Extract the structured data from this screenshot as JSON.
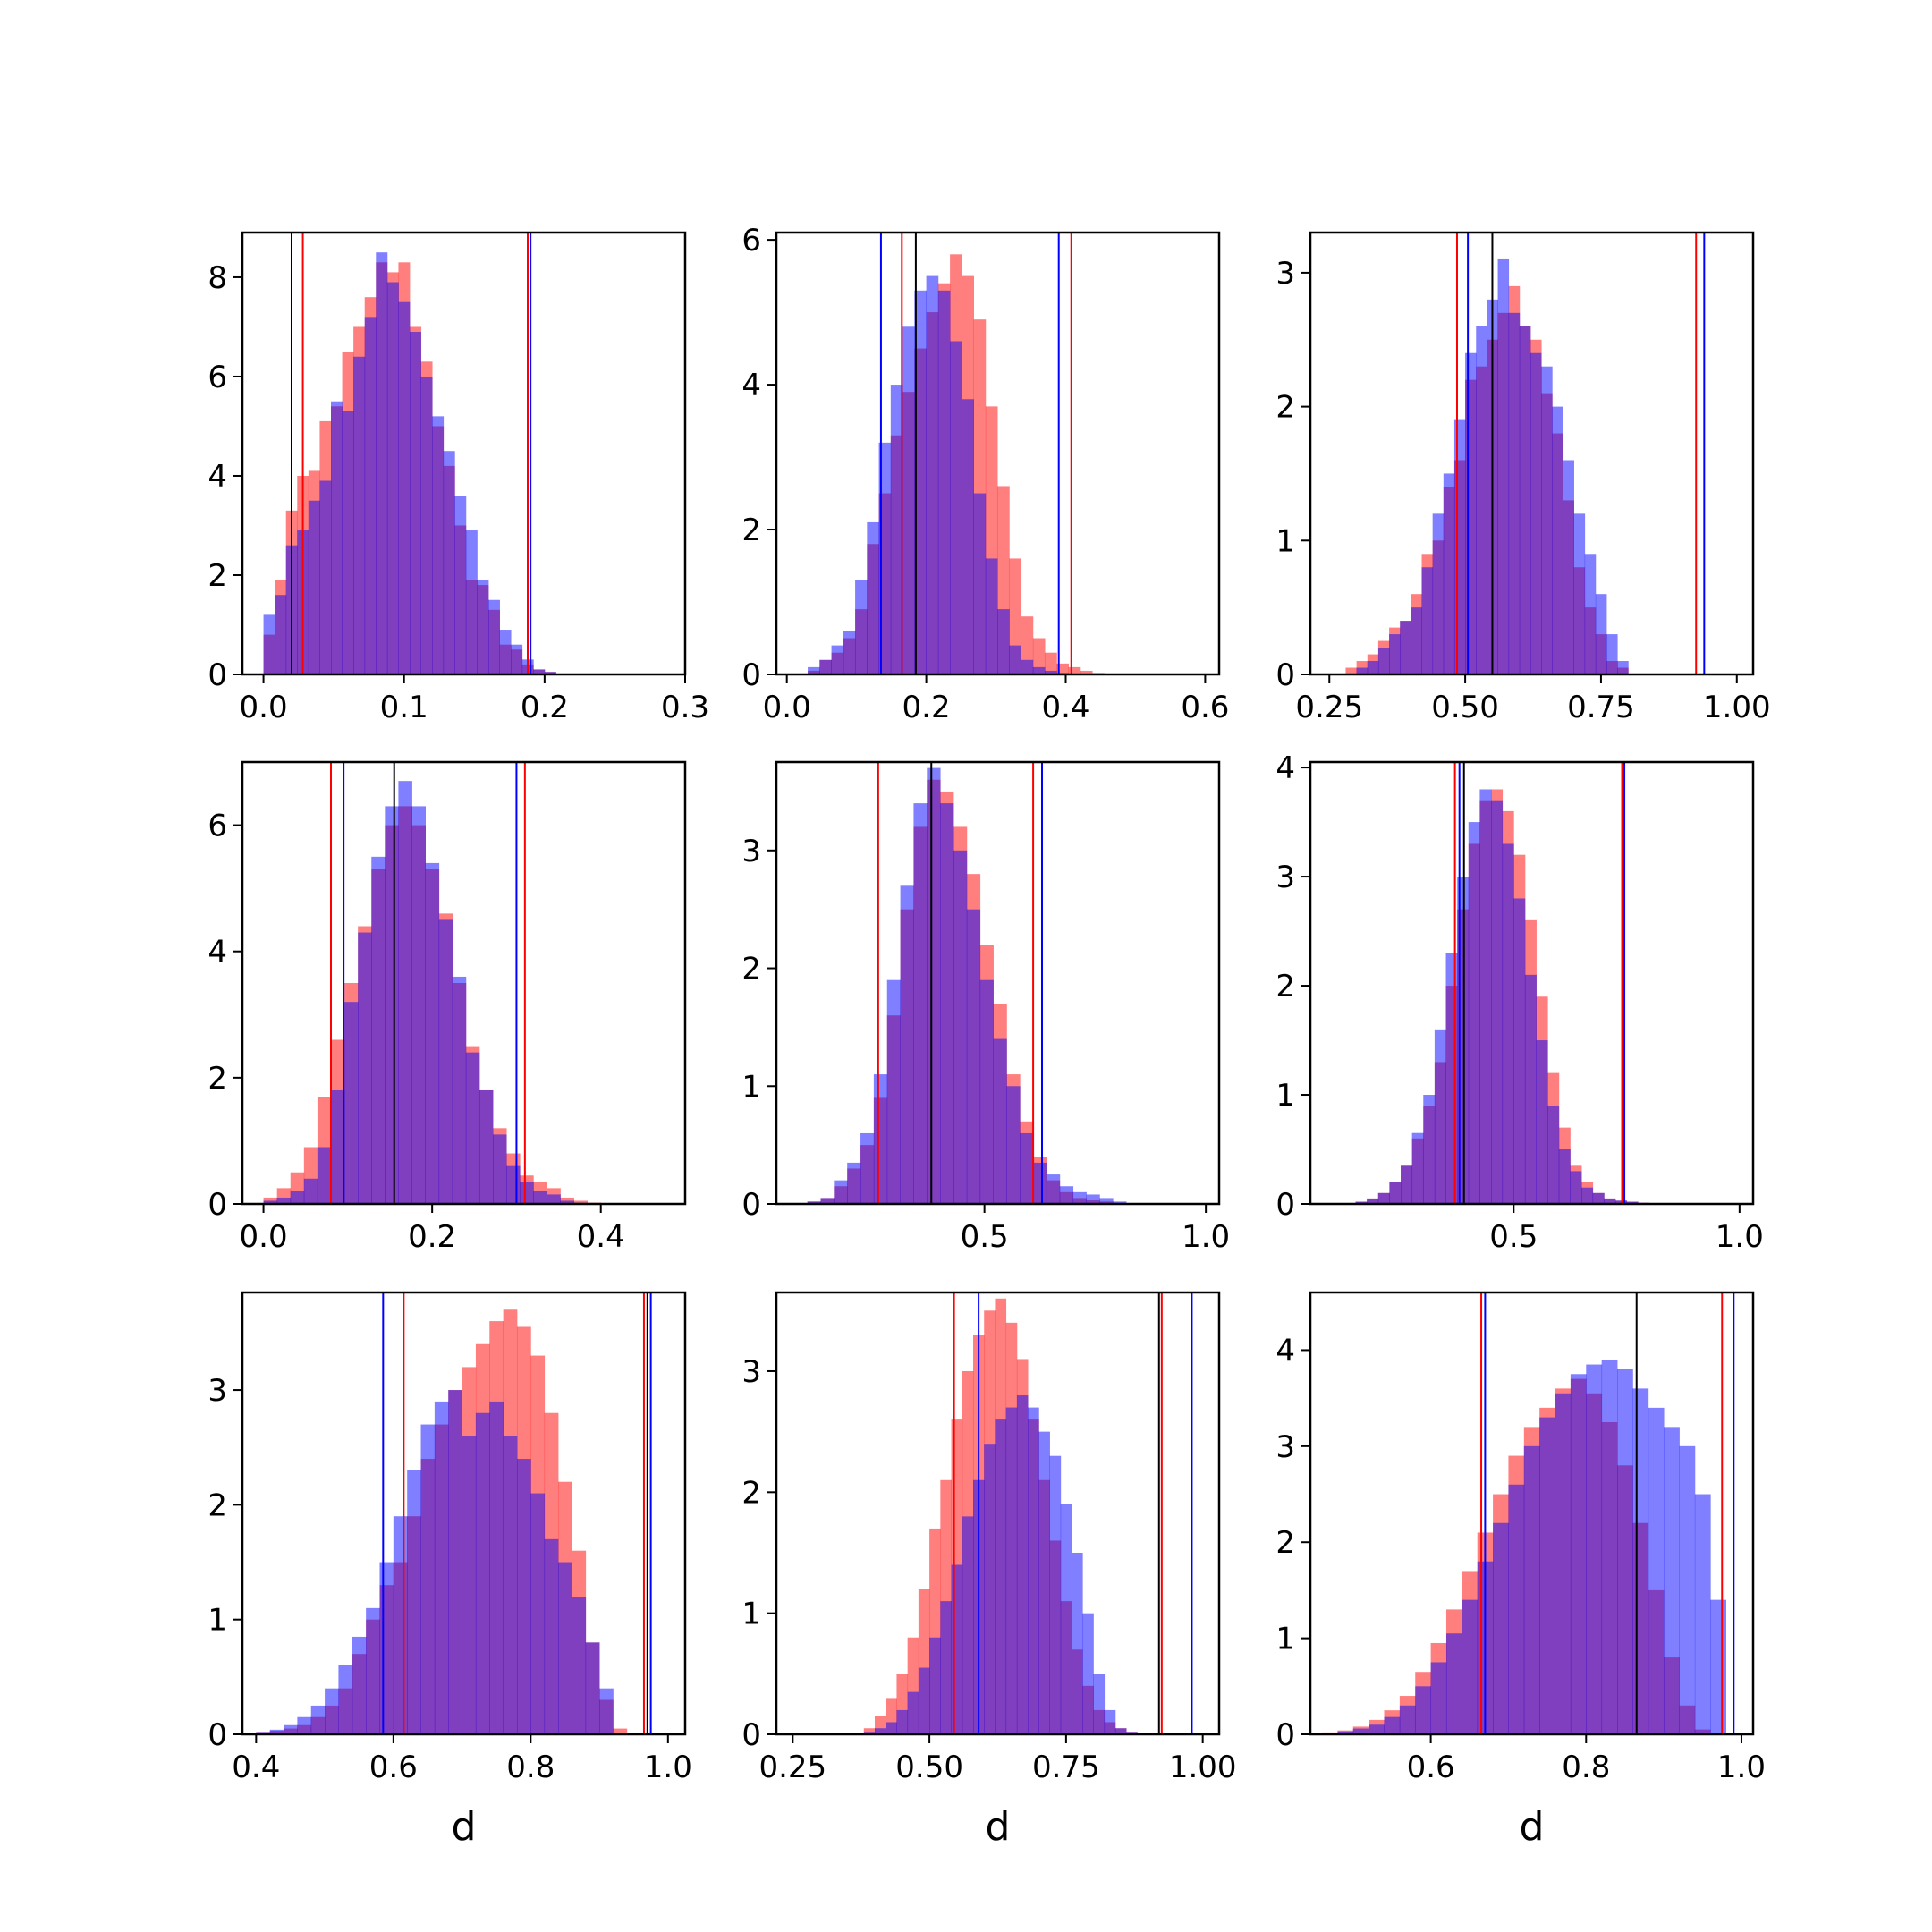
{
  "colors": {
    "red": "#ff0000",
    "blue": "#0000ff",
    "black": "#000000",
    "red_fill": "#ff7f7f",
    "blue_fill": "#7f7fff"
  },
  "chart_data": [
    {
      "type": "histogram",
      "row": 0,
      "col": 0,
      "xlabel": "",
      "xlim": [
        -0.015,
        0.3
      ],
      "ylim": [
        0,
        8.9
      ],
      "xticks": [
        0.0,
        0.1,
        0.2,
        0.3
      ],
      "xtick_labels": [
        "0.0",
        "0.1",
        "0.2",
        "0.3"
      ],
      "yticks": [
        0,
        2,
        4,
        6,
        8
      ],
      "ytick_labels": [
        "0",
        "2",
        "4",
        "6",
        "8"
      ],
      "bin_start": 0.0,
      "bin_width": 0.008,
      "red_heights": [
        0.8,
        1.9,
        3.3,
        4.0,
        4.1,
        5.1,
        5.4,
        6.5,
        7.0,
        7.6,
        8.3,
        8.1,
        8.3,
        7.0,
        6.3,
        5.0,
        4.2,
        3.0,
        1.9,
        1.8,
        1.3,
        0.6,
        0.5,
        0.2,
        0.1,
        0.05,
        0.0
      ],
      "blue_heights": [
        1.2,
        1.6,
        2.6,
        2.9,
        3.5,
        3.9,
        5.5,
        5.3,
        6.4,
        7.2,
        8.5,
        7.9,
        7.5,
        6.9,
        6.0,
        5.2,
        4.5,
        3.6,
        2.9,
        1.9,
        1.5,
        0.9,
        0.6,
        0.3,
        0.1,
        0.05,
        0.0
      ],
      "vlines": [
        {
          "x": 0.02,
          "color": "black"
        },
        {
          "x": 0.028,
          "color": "red"
        },
        {
          "x": 0.188,
          "color": "red"
        },
        {
          "x": 0.19,
          "color": "blue"
        }
      ]
    },
    {
      "type": "histogram",
      "row": 0,
      "col": 1,
      "xlabel": "",
      "xlim": [
        -0.015,
        0.62
      ],
      "ylim": [
        0,
        6.1
      ],
      "xticks": [
        0.0,
        0.2,
        0.4,
        0.6
      ],
      "xtick_labels": [
        "0.0",
        "0.2",
        "0.4",
        "0.6"
      ],
      "yticks": [
        0,
        2,
        4,
        6
      ],
      "ytick_labels": [
        "0",
        "2",
        "4",
        "6"
      ],
      "bin_start": 0.03,
      "bin_width": 0.017,
      "red_heights": [
        0.05,
        0.2,
        0.3,
        0.5,
        0.9,
        1.8,
        2.5,
        3.3,
        3.9,
        4.5,
        5.0,
        5.4,
        5.8,
        5.5,
        4.9,
        3.7,
        2.6,
        1.6,
        0.8,
        0.5,
        0.3,
        0.15,
        0.1,
        0.05,
        0.02,
        0.01
      ],
      "blue_heights": [
        0.1,
        0.2,
        0.4,
        0.6,
        1.3,
        2.1,
        3.2,
        4.0,
        4.8,
        5.3,
        5.5,
        5.3,
        4.6,
        3.8,
        2.5,
        1.6,
        0.9,
        0.4,
        0.2,
        0.1,
        0.05,
        0.02,
        0.01,
        0.0,
        0.0,
        0.0
      ],
      "vlines": [
        {
          "x": 0.135,
          "color": "blue"
        },
        {
          "x": 0.165,
          "color": "red"
        },
        {
          "x": 0.185,
          "color": "black"
        },
        {
          "x": 0.39,
          "color": "blue"
        },
        {
          "x": 0.408,
          "color": "red"
        }
      ]
    },
    {
      "type": "histogram",
      "row": 0,
      "col": 2,
      "xlabel": "",
      "xlim": [
        0.215,
        1.03
      ],
      "ylim": [
        0,
        3.3
      ],
      "xticks": [
        0.25,
        0.5,
        0.75,
        1.0
      ],
      "xtick_labels": [
        "0.25",
        "0.50",
        "0.75",
        "1.00"
      ],
      "yticks": [
        0,
        1,
        2,
        3
      ],
      "ytick_labels": [
        "0",
        "1",
        "2",
        "3"
      ],
      "bin_start": 0.28,
      "bin_width": 0.02,
      "red_heights": [
        0.05,
        0.1,
        0.15,
        0.25,
        0.35,
        0.4,
        0.6,
        0.9,
        1.0,
        1.4,
        1.6,
        2.2,
        2.3,
        2.5,
        2.7,
        2.9,
        2.6,
        2.5,
        2.1,
        1.8,
        1.3,
        0.8,
        0.5,
        0.3,
        0.1,
        0.05
      ],
      "blue_heights": [
        0.0,
        0.05,
        0.1,
        0.2,
        0.3,
        0.4,
        0.5,
        0.8,
        1.2,
        1.5,
        1.9,
        2.4,
        2.6,
        2.8,
        3.1,
        2.7,
        2.6,
        2.4,
        2.3,
        2.0,
        1.6,
        1.2,
        0.9,
        0.6,
        0.3,
        0.1
      ],
      "vlines": [
        {
          "x": 0.485,
          "color": "red"
        },
        {
          "x": 0.505,
          "color": "blue"
        },
        {
          "x": 0.55,
          "color": "black"
        },
        {
          "x": 0.925,
          "color": "red"
        },
        {
          "x": 0.94,
          "color": "blue"
        }
      ]
    },
    {
      "type": "histogram",
      "row": 1,
      "col": 0,
      "xlabel": "",
      "xlim": [
        -0.025,
        0.5
      ],
      "ylim": [
        0,
        7.0
      ],
      "xticks": [
        0.0,
        0.2,
        0.4
      ],
      "xtick_labels": [
        "0.0",
        "0.2",
        "0.4"
      ],
      "yticks": [
        0,
        2,
        4,
        6
      ],
      "ytick_labels": [
        "0",
        "2",
        "4",
        "6"
      ],
      "bin_start": 0.0,
      "bin_width": 0.016,
      "red_heights": [
        0.1,
        0.25,
        0.5,
        0.9,
        1.7,
        2.6,
        3.5,
        4.4,
        5.3,
        6.0,
        6.3,
        6.0,
        5.3,
        4.6,
        3.5,
        2.5,
        1.8,
        1.2,
        0.8,
        0.45,
        0.35,
        0.25,
        0.1,
        0.05,
        0.02
      ],
      "blue_heights": [
        0.05,
        0.1,
        0.2,
        0.4,
        0.9,
        1.8,
        3.2,
        4.3,
        5.5,
        6.3,
        6.7,
        6.3,
        5.4,
        4.5,
        3.6,
        2.4,
        1.8,
        1.1,
        0.6,
        0.35,
        0.2,
        0.15,
        0.05,
        0.02,
        0.01
      ],
      "vlines": [
        {
          "x": 0.08,
          "color": "red"
        },
        {
          "x": 0.095,
          "color": "blue"
        },
        {
          "x": 0.155,
          "color": "black"
        },
        {
          "x": 0.3,
          "color": "blue"
        },
        {
          "x": 0.31,
          "color": "red"
        }
      ]
    },
    {
      "type": "histogram",
      "row": 1,
      "col": 1,
      "xlabel": "",
      "xlim": [
        0.03,
        1.03
      ],
      "ylim": [
        0,
        3.75
      ],
      "xticks": [
        0.5,
        1.0
      ],
      "xtick_labels": [
        "0.5",
        "1.0"
      ],
      "yticks": [
        0,
        1,
        2,
        3
      ],
      "ytick_labels": [
        "0",
        "1",
        "2",
        "3"
      ],
      "bin_start": 0.1,
      "bin_width": 0.03,
      "red_heights": [
        0.02,
        0.05,
        0.15,
        0.3,
        0.5,
        0.9,
        1.6,
        2.5,
        3.2,
        3.6,
        3.5,
        3.2,
        2.8,
        2.2,
        1.7,
        1.1,
        0.7,
        0.4,
        0.2,
        0.1,
        0.05,
        0.03,
        0.02,
        0.01,
        0.0,
        0.0
      ],
      "blue_heights": [
        0.02,
        0.05,
        0.2,
        0.35,
        0.6,
        1.1,
        1.9,
        2.7,
        3.4,
        3.7,
        3.4,
        3.0,
        2.5,
        1.9,
        1.4,
        1.0,
        0.6,
        0.35,
        0.25,
        0.15,
        0.1,
        0.08,
        0.05,
        0.02,
        0.0,
        0.0
      ],
      "vlines": [
        {
          "x": 0.26,
          "color": "red"
        },
        {
          "x": 0.38,
          "color": "black"
        },
        {
          "x": 0.61,
          "color": "red"
        },
        {
          "x": 0.63,
          "color": "blue"
        }
      ]
    },
    {
      "type": "histogram",
      "row": 1,
      "col": 2,
      "xlabel": "",
      "xlim": [
        0.05,
        1.03
      ],
      "ylim": [
        0,
        4.05
      ],
      "xticks": [
        0.5,
        1.0
      ],
      "xtick_labels": [
        "0.5",
        "1.0"
      ],
      "yticks": [
        0,
        1,
        2,
        3,
        4
      ],
      "ytick_labels": [
        "0",
        "1",
        "2",
        "3",
        "4"
      ],
      "bin_start": 0.15,
      "bin_width": 0.025,
      "red_heights": [
        0.02,
        0.05,
        0.1,
        0.2,
        0.35,
        0.6,
        0.9,
        1.3,
        2.0,
        2.7,
        3.3,
        3.7,
        3.8,
        3.6,
        3.2,
        2.6,
        1.9,
        1.2,
        0.7,
        0.35,
        0.2,
        0.1,
        0.05,
        0.03,
        0.02,
        0.01,
        0.0,
        0.0,
        0.0,
        0.0,
        0.0,
        0.0,
        0.0,
        0.0
      ],
      "blue_heights": [
        0.02,
        0.05,
        0.1,
        0.2,
        0.35,
        0.65,
        1.0,
        1.6,
        2.3,
        3.0,
        3.5,
        3.8,
        3.7,
        3.3,
        2.8,
        2.1,
        1.5,
        0.9,
        0.5,
        0.3,
        0.15,
        0.1,
        0.05,
        0.03,
        0.02,
        0.01,
        0.0,
        0.0,
        0.0,
        0.0,
        0.0,
        0.0,
        0.0,
        0.0
      ],
      "vlines": [
        {
          "x": 0.37,
          "color": "red"
        },
        {
          "x": 0.38,
          "color": "blue"
        },
        {
          "x": 0.39,
          "color": "black"
        },
        {
          "x": 0.74,
          "color": "red"
        },
        {
          "x": 0.745,
          "color": "blue"
        }
      ]
    },
    {
      "type": "histogram",
      "row": 2,
      "col": 0,
      "xlabel": "d",
      "xlim": [
        0.38,
        1.025
      ],
      "ylim": [
        0,
        3.85
      ],
      "xticks": [
        0.4,
        0.6,
        0.8,
        1.0
      ],
      "xtick_labels": [
        "0.4",
        "0.6",
        "0.8",
        "1.0"
      ],
      "yticks": [
        0,
        1,
        2,
        3
      ],
      "ytick_labels": [
        "0",
        "1",
        "2",
        "3"
      ],
      "bin_start": 0.4,
      "bin_width": 0.02,
      "red_heights": [
        0.02,
        0.03,
        0.05,
        0.08,
        0.15,
        0.25,
        0.4,
        0.7,
        1.0,
        1.3,
        1.5,
        1.9,
        2.4,
        2.7,
        3.0,
        3.2,
        3.4,
        3.6,
        3.7,
        3.55,
        3.3,
        2.8,
        2.2,
        1.6,
        0.8,
        0.3,
        0.05,
        0.0,
        0.0,
        0.0,
        0.0,
        0.0
      ],
      "blue_heights": [
        0.02,
        0.04,
        0.08,
        0.15,
        0.25,
        0.4,
        0.6,
        0.85,
        1.1,
        1.5,
        1.9,
        2.3,
        2.7,
        2.9,
        3.0,
        2.6,
        2.8,
        2.9,
        2.6,
        2.4,
        2.1,
        1.7,
        1.5,
        1.2,
        0.8,
        0.4,
        0.0,
        0.0,
        0.0,
        0.0,
        0.0,
        0.0
      ],
      "vlines": [
        {
          "x": 0.585,
          "color": "blue"
        },
        {
          "x": 0.615,
          "color": "red"
        },
        {
          "x": 0.965,
          "color": "red"
        },
        {
          "x": 0.97,
          "color": "black"
        },
        {
          "x": 0.975,
          "color": "blue"
        }
      ]
    },
    {
      "type": "histogram",
      "row": 2,
      "col": 1,
      "xlabel": "d",
      "xlim": [
        0.22,
        1.03
      ],
      "ylim": [
        0,
        3.65
      ],
      "xticks": [
        0.25,
        0.5,
        0.75,
        1.0
      ],
      "xtick_labels": [
        "0.25",
        "0.50",
        "0.75",
        "1.00"
      ],
      "yticks": [
        0,
        1,
        2,
        3
      ],
      "ytick_labels": [
        "0",
        "1",
        "2",
        "3"
      ],
      "bin_start": 0.38,
      "bin_width": 0.02,
      "red_heights": [
        0.05,
        0.15,
        0.3,
        0.5,
        0.8,
        1.2,
        1.7,
        2.1,
        2.6,
        3.0,
        3.3,
        3.5,
        3.6,
        3.4,
        3.1,
        2.6,
        2.1,
        1.6,
        1.1,
        0.7,
        0.4,
        0.2,
        0.1,
        0.05,
        0.02,
        0.01,
        0.0,
        0.0,
        0.0,
        0.0,
        0.0,
        0.0
      ],
      "blue_heights": [
        0.02,
        0.05,
        0.1,
        0.2,
        0.35,
        0.55,
        0.8,
        1.1,
        1.4,
        1.8,
        2.1,
        2.4,
        2.6,
        2.7,
        2.8,
        2.7,
        2.5,
        2.3,
        1.9,
        1.5,
        1.0,
        0.5,
        0.2,
        0.05,
        0.02,
        0.01,
        0.0,
        0.0,
        0.0,
        0.0,
        0.0,
        0.0
      ],
      "vlines": [
        {
          "x": 0.545,
          "color": "red"
        },
        {
          "x": 0.59,
          "color": "blue"
        },
        {
          "x": 0.92,
          "color": "black"
        },
        {
          "x": 0.925,
          "color": "red"
        },
        {
          "x": 0.98,
          "color": "blue"
        }
      ]
    },
    {
      "type": "histogram",
      "row": 2,
      "col": 2,
      "xlabel": "d",
      "xlim": [
        0.445,
        1.015
      ],
      "ylim": [
        0,
        4.6
      ],
      "xticks": [
        0.6,
        0.8,
        1.0
      ],
      "xtick_labels": [
        "0.6",
        "0.8",
        "1.0"
      ],
      "yticks": [
        0,
        1,
        2,
        3,
        4
      ],
      "ytick_labels": [
        "0",
        "1",
        "2",
        "3",
        "4"
      ],
      "bin_start": 0.46,
      "bin_width": 0.02,
      "red_heights": [
        0.02,
        0.04,
        0.08,
        0.15,
        0.25,
        0.4,
        0.65,
        0.95,
        1.3,
        1.7,
        2.1,
        2.5,
        2.9,
        3.2,
        3.4,
        3.6,
        3.7,
        3.55,
        3.25,
        2.8,
        2.2,
        1.5,
        0.8,
        0.3,
        0.05,
        0.0,
        0.0,
        0.0
      ],
      "blue_heights": [
        0.01,
        0.03,
        0.06,
        0.1,
        0.18,
        0.3,
        0.5,
        0.75,
        1.05,
        1.4,
        1.8,
        2.2,
        2.6,
        3.0,
        3.3,
        3.55,
        3.75,
        3.85,
        3.9,
        3.8,
        3.6,
        3.4,
        3.2,
        3.0,
        2.5,
        1.4,
        0.0,
        0.0
      ],
      "vlines": [
        {
          "x": 0.665,
          "color": "red"
        },
        {
          "x": 0.67,
          "color": "blue"
        },
        {
          "x": 0.865,
          "color": "black"
        },
        {
          "x": 0.975,
          "color": "red"
        },
        {
          "x": 0.99,
          "color": "blue"
        }
      ]
    }
  ]
}
